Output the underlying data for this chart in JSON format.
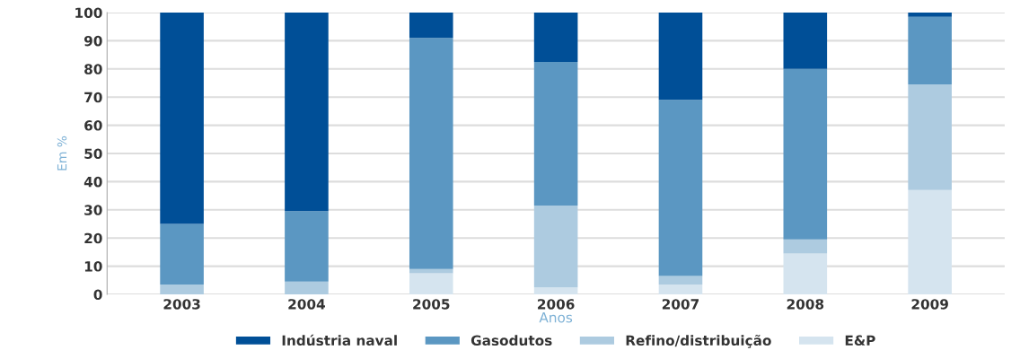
{
  "chart_data": {
    "type": "bar",
    "stacked": true,
    "xlabel": "Anos",
    "ylabel": "Em %",
    "categories": [
      "2003",
      "2004",
      "2005",
      "2006",
      "2007",
      "2008",
      "2009"
    ],
    "series": [
      {
        "name": "E&P",
        "color": "#d5e4ef",
        "values": [
          0,
          0,
          7.5,
          2.5,
          3.5,
          14.5,
          37
        ]
      },
      {
        "name": "Refino/distribuição",
        "color": "#adcbe0",
        "values": [
          3.5,
          4.5,
          1.5,
          29,
          3,
          5,
          37.5
        ]
      },
      {
        "name": "Gasodutos",
        "color": "#5b97c2",
        "values": [
          21.5,
          25,
          82,
          51,
          62.5,
          60.5,
          24
        ]
      },
      {
        "name": "Indústria naval",
        "color": "#004f97",
        "values": [
          75,
          70.5,
          9,
          17.5,
          31,
          20,
          1.5
        ]
      }
    ],
    "ylim": [
      0,
      100
    ],
    "yticks": [
      0,
      10,
      20,
      30,
      40,
      50,
      60,
      70,
      80,
      90,
      100
    ],
    "grid": "y",
    "legend": "bottom"
  }
}
